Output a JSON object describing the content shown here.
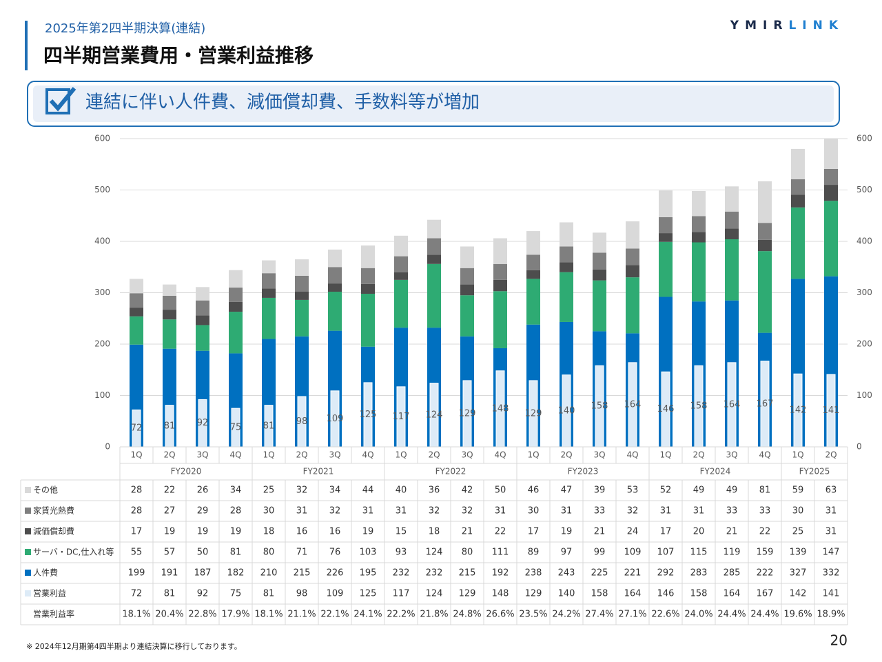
{
  "header": {
    "subtitle": "2025年第2四半期決算(連結)",
    "title": "四半期営業費用・営業利益推移",
    "logo_left": "YMIR",
    "logo_right": "LINK",
    "callout": "連結に伴い人件費、減価償却費、手数料等が増加"
  },
  "chart_data": {
    "type": "bar",
    "stacked": true,
    "groups": [
      {
        "name": "FY2020",
        "categories": [
          "1Q",
          "2Q",
          "3Q",
          "4Q"
        ]
      },
      {
        "name": "FY2021",
        "categories": [
          "1Q",
          "2Q",
          "3Q",
          "4Q"
        ]
      },
      {
        "name": "FY2022",
        "categories": [
          "1Q",
          "2Q",
          "3Q",
          "4Q"
        ]
      },
      {
        "name": "FY2023",
        "categories": [
          "1Q",
          "2Q",
          "3Q",
          "4Q"
        ]
      },
      {
        "name": "FY2024",
        "categories": [
          "1Q",
          "2Q",
          "3Q",
          "4Q"
        ]
      },
      {
        "name": "FY2025",
        "categories": [
          "1Q",
          "2Q"
        ]
      }
    ],
    "series": [
      {
        "name": "その他",
        "color": "#d9d9d9",
        "values": [
          28,
          22,
          26,
          34,
          25,
          32,
          34,
          44,
          40,
          36,
          42,
          50,
          46,
          47,
          39,
          53,
          52,
          49,
          49,
          81,
          59,
          63
        ]
      },
      {
        "name": "家賃光熱費",
        "color": "#7f7f7f",
        "values": [
          28,
          27,
          29,
          28,
          30,
          31,
          32,
          31,
          31,
          32,
          32,
          31,
          30,
          31,
          33,
          32,
          31,
          31,
          33,
          33,
          30,
          31
        ]
      },
      {
        "name": "減価償却費",
        "color": "#4d4d4d",
        "values": [
          17,
          19,
          19,
          19,
          18,
          16,
          16,
          19,
          15,
          18,
          21,
          22,
          17,
          19,
          21,
          24,
          17,
          20,
          21,
          22,
          25,
          31
        ]
      },
      {
        "name": "サーバ・DC,仕入れ等",
        "color": "#2eab73",
        "values": [
          55,
          57,
          50,
          81,
          80,
          71,
          76,
          103,
          93,
          124,
          80,
          111,
          89,
          97,
          99,
          109,
          107,
          115,
          119,
          159,
          139,
          147
        ]
      },
      {
        "name": "人件費",
        "color": "#0070c0",
        "values": [
          199,
          191,
          187,
          182,
          210,
          215,
          226,
          195,
          232,
          232,
          215,
          192,
          238,
          243,
          225,
          221,
          292,
          283,
          285,
          222,
          327,
          332
        ]
      }
    ],
    "profit_series": {
      "name": "営業利益",
      "color": "#ddebf7",
      "values": [
        72,
        81,
        92,
        75,
        81,
        98,
        109,
        125,
        117,
        124,
        129,
        148,
        129,
        140,
        158,
        164,
        146,
        158,
        164,
        167,
        142,
        141
      ]
    },
    "margin_series": {
      "name": "営業利益率",
      "values": [
        18.1,
        20.4,
        22.8,
        17.9,
        18.1,
        21.1,
        22.1,
        24.1,
        22.2,
        21.8,
        24.8,
        26.6,
        23.5,
        24.2,
        27.4,
        27.1,
        22.6,
        24.0,
        24.4,
        24.4,
        19.6,
        18.9
      ],
      "value_labels": [
        "18.1%",
        "20.4%",
        "22.8%",
        "17.9%",
        "18.1%",
        "21.1%",
        "22.1%",
        "24.1%",
        "22.2%",
        "21.8%",
        "24.8%",
        "26.6%",
        "23.5%",
        "24.2%",
        "27.4%",
        "27.1%",
        "22.6%",
        "24.0%",
        "24.4%",
        "24.4%",
        "19.6%",
        "18.9%"
      ]
    },
    "ylim": [
      0,
      600
    ],
    "yticks": [
      0,
      100,
      200,
      300,
      400,
      500,
      600
    ],
    "y2lim": [
      0,
      600
    ],
    "y2ticks": [
      0,
      100,
      200,
      300,
      400,
      500,
      600
    ],
    "grid": true
  },
  "footnote": "※ 2024年12月期第4四半期より連結決算に移行しております。",
  "page_number": "20"
}
